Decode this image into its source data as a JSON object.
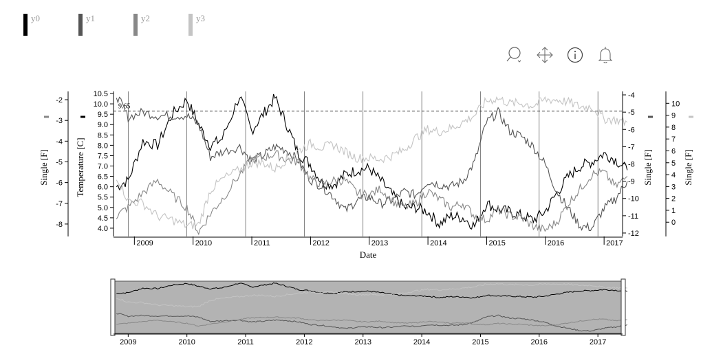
{
  "legend": [
    {
      "label": "y0",
      "color": "#000000"
    },
    {
      "label": "y1",
      "color": "#555555"
    },
    {
      "label": "y2",
      "color": "#888888"
    },
    {
      "label": "y3",
      "color": "#c4c4c4"
    }
  ],
  "toolbar": [
    {
      "name": "zoom-icon"
    },
    {
      "name": "pan-icon"
    },
    {
      "name": "info-icon"
    },
    {
      "name": "bell-icon"
    }
  ],
  "colors": {
    "y0": "#000000",
    "y1": "#555555",
    "y2": "#888888",
    "y3": "#c4c4c4",
    "brush_bg": "#b3b3b3"
  },
  "chart_data": {
    "type": "line",
    "xlabel": "Date",
    "x_ticks": [
      "2009",
      "2010",
      "2011",
      "2012",
      "2013",
      "2014",
      "2015",
      "2016",
      "2017"
    ],
    "x_range": [
      "2008-10-01",
      "2017-06-01"
    ],
    "grid": "vertical lines at each year",
    "reference_line": {
      "label": "9.65",
      "value": 9.65,
      "axis": "Temperature [C]",
      "style": "dashed"
    },
    "axes": [
      {
        "id": "y0",
        "label": "Temperature [C]",
        "side": "left",
        "range": [
          3.6,
          10.6
        ],
        "ticks": [
          "4.0",
          "4.5",
          "5.0",
          "5.5",
          "6.0",
          "6.5",
          "7.0",
          "7.5",
          "8.0",
          "8.5",
          "9.0",
          "9.5",
          "10.0",
          "10.5"
        ]
      },
      {
        "id": "y2",
        "label": "Single [F]",
        "side": "left-outer",
        "range": [
          -8.6,
          -1.6
        ],
        "ticks": [
          "-8",
          "-7",
          "-6",
          "-5",
          "-4",
          "-3",
          "-2"
        ]
      },
      {
        "id": "y1",
        "label": "Single [F]",
        "side": "right",
        "range": [
          -12.2,
          -3.8
        ],
        "ticks": [
          "-12",
          "-11",
          "-10",
          "-9",
          "-8",
          "-7",
          "-6",
          "-5",
          "-4"
        ]
      },
      {
        "id": "y3",
        "label": "Single [F]",
        "side": "right-outer",
        "range": [
          -1.2,
          11.0
        ],
        "ticks": [
          "0",
          "1",
          "2",
          "3",
          "4",
          "5",
          "6",
          "7",
          "8",
          "9",
          "10"
        ]
      }
    ],
    "series": [
      {
        "name": "y0",
        "axis": "y0",
        "x": [
          2008.8,
          2009.0,
          2009.25,
          2009.5,
          2009.75,
          2010.0,
          2010.2,
          2010.4,
          2010.6,
          2010.9,
          2011.1,
          2011.3,
          2011.5,
          2011.7,
          2011.9,
          2012.1,
          2012.3,
          2012.5,
          2012.7,
          2012.9,
          2013.1,
          2013.3,
          2013.5,
          2013.7,
          2013.9,
          2014.1,
          2014.3,
          2014.5,
          2014.7,
          2014.9,
          2015.1,
          2015.3,
          2015.5,
          2015.7,
          2015.9,
          2016.1,
          2016.3,
          2016.5,
          2016.7,
          2016.9,
          2017.1,
          2017.3,
          2017.5
        ],
        "values": [
          6.0,
          6.3,
          8.2,
          8.0,
          9.5,
          10.2,
          9.0,
          8.0,
          8.3,
          10.4,
          8.7,
          9.5,
          10.3,
          9.0,
          7.6,
          7.1,
          6.2,
          6.1,
          6.6,
          6.8,
          6.9,
          6.3,
          5.6,
          5.0,
          5.0,
          4.8,
          4.2,
          4.6,
          4.5,
          4.1,
          5.2,
          4.9,
          4.8,
          4.6,
          4.4,
          4.8,
          5.7,
          6.5,
          7.0,
          7.2,
          7.6,
          7.3,
          6.8
        ]
      },
      {
        "name": "y1",
        "axis": "y1",
        "x": [
          2008.8,
          2009.0,
          2009.25,
          2009.5,
          2009.75,
          2010.0,
          2010.2,
          2010.4,
          2010.6,
          2010.9,
          2011.1,
          2011.3,
          2011.5,
          2011.7,
          2011.9,
          2012.1,
          2012.3,
          2012.5,
          2012.7,
          2012.9,
          2013.1,
          2013.3,
          2013.5,
          2013.7,
          2013.9,
          2014.1,
          2014.3,
          2014.5,
          2014.7,
          2014.9,
          2015.1,
          2015.3,
          2015.5,
          2015.7,
          2015.9,
          2016.1,
          2016.3,
          2016.5,
          2016.7,
          2016.9,
          2017.1,
          2017.3,
          2017.5
        ],
        "values": [
          -4.0,
          -5.3,
          -5.0,
          -5.2,
          -5.2,
          -5.2,
          -5.7,
          -7.6,
          -7.3,
          -7.0,
          -7.8,
          -7.5,
          -7.0,
          -7.2,
          -7.8,
          -8.9,
          -9.3,
          -9.9,
          -10.7,
          -10.1,
          -9.9,
          -10.3,
          -10.1,
          -9.6,
          -9.8,
          -9.0,
          -9.2,
          -9.3,
          -9.0,
          -7.9,
          -5.6,
          -5.0,
          -6.1,
          -6.4,
          -7.0,
          -8.0,
          -9.6,
          -10.6,
          -11.6,
          -11.7,
          -10.6,
          -10.0,
          -9.0
        ]
      },
      {
        "name": "y2",
        "axis": "y2",
        "x": [
          2008.8,
          2009.0,
          2009.25,
          2009.5,
          2009.75,
          2010.0,
          2010.2,
          2010.4,
          2010.6,
          2010.9,
          2011.1,
          2011.3,
          2011.5,
          2011.7,
          2011.9,
          2012.1,
          2012.3,
          2012.5,
          2012.7,
          2012.9,
          2013.1,
          2013.3,
          2013.5,
          2013.7,
          2013.9,
          2014.1,
          2014.3,
          2014.5,
          2014.7,
          2014.9,
          2015.1,
          2015.3,
          2015.5,
          2015.7,
          2015.9,
          2016.1,
          2016.3,
          2016.5,
          2016.7,
          2016.9,
          2017.1,
          2017.3,
          2017.5
        ],
        "values": [
          -7.6,
          -7.2,
          -6.5,
          -5.9,
          -6.6,
          -7.2,
          -8.4,
          -7.5,
          -6.8,
          -5.6,
          -4.9,
          -4.8,
          -4.6,
          -4.9,
          -5.0,
          -5.8,
          -6.1,
          -5.9,
          -5.9,
          -6.5,
          -6.6,
          -6.3,
          -6.9,
          -7.2,
          -7.0,
          -6.4,
          -6.8,
          -7.2,
          -7.0,
          -7.6,
          -7.8,
          -7.3,
          -7.6,
          -7.7,
          -8.1,
          -8.3,
          -7.9,
          -7.0,
          -6.3,
          -5.6,
          -5.5,
          -6.2,
          -5.7
        ]
      },
      {
        "name": "y3",
        "axis": "y3",
        "x": [
          2008.8,
          2009.0,
          2009.25,
          2009.5,
          2009.75,
          2010.0,
          2010.2,
          2010.4,
          2010.6,
          2010.9,
          2011.1,
          2011.3,
          2011.5,
          2011.7,
          2011.9,
          2012.1,
          2012.3,
          2012.5,
          2012.7,
          2012.9,
          2013.1,
          2013.3,
          2013.5,
          2013.7,
          2013.9,
          2014.1,
          2014.3,
          2014.5,
          2014.7,
          2014.9,
          2015.1,
          2015.3,
          2015.5,
          2015.7,
          2015.9,
          2016.1,
          2016.3,
          2016.5,
          2016.7,
          2016.9,
          2017.1,
          2017.3,
          2017.5
        ],
        "values": [
          3.9,
          1.8,
          1.6,
          0.5,
          0.2,
          -0.3,
          -0.2,
          2.7,
          3.6,
          4.4,
          5.0,
          5.0,
          4.5,
          5.3,
          6.0,
          6.6,
          6.3,
          6.5,
          5.9,
          5.4,
          5.4,
          5.3,
          5.6,
          6.1,
          7.1,
          7.8,
          7.6,
          7.9,
          8.4,
          9.0,
          10.2,
          10.4,
          10.0,
          10.0,
          9.8,
          10.3,
          10.3,
          10.1,
          9.7,
          9.7,
          8.7,
          8.6,
          8.4
        ]
      }
    ]
  }
}
